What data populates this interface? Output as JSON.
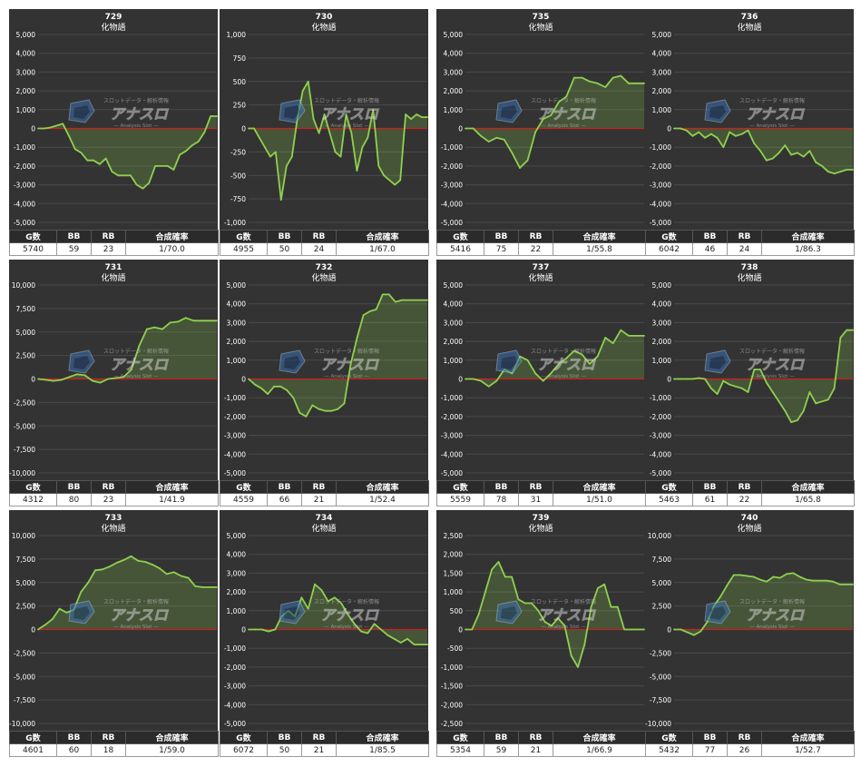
{
  "headers": [
    "G数",
    "BB",
    "RB",
    "合成確率"
  ],
  "watermark": {
    "line1": "スロットデータ・解析情報",
    "line2": "アナスロ",
    "line3": "— Analysis Slot —"
  },
  "colors": {
    "line": "#8fd14f",
    "fill": "#8fd14f",
    "zero": "#cc1f1f",
    "bg": "#333333",
    "grid": "#4a4a4a"
  },
  "panels": [
    {
      "title": "729",
      "subtitle": "化物語",
      "stats": {
        "g": "5740",
        "bb": "59",
        "rb": "23",
        "rate": "1/70.0"
      }
    },
    {
      "title": "730",
      "subtitle": "化物語",
      "stats": {
        "g": "4955",
        "bb": "50",
        "rb": "24",
        "rate": "1/67.0"
      }
    },
    {
      "title": "735",
      "subtitle": "化物語",
      "stats": {
        "g": "5416",
        "bb": "75",
        "rb": "22",
        "rate": "1/55.8"
      }
    },
    {
      "title": "736",
      "subtitle": "化物語",
      "stats": {
        "g": "6042",
        "bb": "46",
        "rb": "24",
        "rate": "1/86.3"
      }
    },
    {
      "title": "731",
      "subtitle": "化物語",
      "stats": {
        "g": "4312",
        "bb": "80",
        "rb": "23",
        "rate": "1/41.9"
      }
    },
    {
      "title": "732",
      "subtitle": "化物語",
      "stats": {
        "g": "4559",
        "bb": "66",
        "rb": "21",
        "rate": "1/52.4"
      }
    },
    {
      "title": "737",
      "subtitle": "化物語",
      "stats": {
        "g": "5559",
        "bb": "78",
        "rb": "31",
        "rate": "1/51.0"
      }
    },
    {
      "title": "738",
      "subtitle": "化物語",
      "stats": {
        "g": "5463",
        "bb": "61",
        "rb": "22",
        "rate": "1/65.8"
      }
    },
    {
      "title": "733",
      "subtitle": "化物語",
      "stats": {
        "g": "4601",
        "bb": "60",
        "rb": "18",
        "rate": "1/59.0"
      }
    },
    {
      "title": "734",
      "subtitle": "化物語",
      "stats": {
        "g": "6072",
        "bb": "50",
        "rb": "21",
        "rate": "1/85.5"
      }
    },
    {
      "title": "739",
      "subtitle": "化物語",
      "stats": {
        "g": "5354",
        "bb": "59",
        "rb": "21",
        "rate": "1/66.9"
      }
    },
    {
      "title": "740",
      "subtitle": "化物語",
      "stats": {
        "g": "5432",
        "bb": "77",
        "rb": "26",
        "rate": "1/52.7"
      }
    }
  ],
  "chart_data": [
    {
      "type": "area",
      "title": "729",
      "subtitle": "化物語",
      "ylim": [
        -5000,
        5000
      ],
      "yticks": [
        "5,000",
        "4,000",
        "3,000",
        "2,000",
        "1,000",
        "0",
        "-1,000",
        "-2,000",
        "-3,000",
        "-4,000",
        "-5,000"
      ],
      "values": [
        0,
        0,
        50,
        150,
        250,
        -400,
        -1100,
        -1300,
        -1700,
        -1700,
        -1900,
        -1600,
        -2300,
        -2500,
        -2500,
        -2500,
        -3000,
        -3200,
        -2900,
        -2000,
        -2000,
        -2000,
        -2200,
        -1400,
        -1200,
        -900,
        -700,
        -200,
        650,
        650
      ]
    },
    {
      "type": "area",
      "title": "730",
      "subtitle": "化物語",
      "ylim": [
        -1000,
        1000
      ],
      "yticks": [
        "1,000",
        "750",
        "500",
        "250",
        "0",
        "-250",
        "-500",
        "-750",
        "-1,000"
      ],
      "values": [
        0,
        0,
        -100,
        -200,
        -300,
        -250,
        -760,
        -400,
        -300,
        100,
        400,
        500,
        100,
        -50,
        150,
        -50,
        -250,
        -300,
        150,
        -50,
        -450,
        -200,
        -100,
        200,
        -400,
        -500,
        -550,
        -600,
        -550,
        150,
        100,
        150,
        120,
        120
      ]
    },
    {
      "type": "area",
      "title": "735",
      "subtitle": "化物語",
      "ylim": [
        -5000,
        5000
      ],
      "yticks": [
        "5,000",
        "4,000",
        "3,000",
        "2,000",
        "1,000",
        "0",
        "-1,000",
        "-2,000",
        "-3,000",
        "-4,000",
        "-5,000"
      ],
      "values": [
        0,
        0,
        -400,
        -700,
        -500,
        -600,
        -1300,
        -2100,
        -1700,
        -200,
        500,
        700,
        1400,
        1700,
        2700,
        2700,
        2500,
        2400,
        2200,
        2700,
        2800,
        2400,
        2400,
        2400
      ]
    },
    {
      "type": "area",
      "title": "736",
      "subtitle": "化物語",
      "ylim": [
        -5000,
        5000
      ],
      "yticks": [
        "5,000",
        "4,000",
        "3,000",
        "2,000",
        "1,000",
        "0",
        "-1,000",
        "-2,000",
        "-3,000",
        "-4,000",
        "-5,000"
      ],
      "values": [
        0,
        0,
        -100,
        -400,
        -200,
        -500,
        -300,
        -500,
        -1000,
        -200,
        -400,
        -300,
        -100,
        -800,
        -1200,
        -1700,
        -1600,
        -1300,
        -900,
        -1400,
        -1300,
        -1500,
        -1200,
        -1800,
        -2000,
        -2300,
        -2400,
        -2300,
        -2200,
        -2200
      ]
    },
    {
      "type": "area",
      "title": "731",
      "subtitle": "化物語",
      "ylim": [
        -10000,
        10000
      ],
      "yticks": [
        "10,000",
        "7,500",
        "5,000",
        "2,500",
        "0",
        "-2,500",
        "-5,000",
        "-7,500",
        "-10,000"
      ],
      "values": [
        0,
        -100,
        -200,
        -100,
        200,
        500,
        400,
        -200,
        -400,
        0,
        100,
        200,
        1000,
        3500,
        5300,
        5500,
        5300,
        6000,
        6100,
        6500,
        6200,
        6200,
        6200,
        6200
      ]
    },
    {
      "type": "area",
      "title": "732",
      "subtitle": "化物語",
      "ylim": [
        -5000,
        5000
      ],
      "yticks": [
        "5,000",
        "4,000",
        "3,000",
        "2,000",
        "1,000",
        "0",
        "-1,000",
        "-2,000",
        "-3,000",
        "-4,000",
        "-5,000"
      ],
      "values": [
        0,
        -300,
        -500,
        -800,
        -400,
        -400,
        -600,
        -1000,
        -1800,
        -2000,
        -1400,
        -1600,
        -1700,
        -1700,
        -1600,
        -1300,
        800,
        2200,
        3400,
        3600,
        3700,
        4500,
        4500,
        4100,
        4200,
        4200,
        4200,
        4200,
        4200
      ]
    },
    {
      "type": "area",
      "title": "737",
      "subtitle": "化物語",
      "ylim": [
        -5000,
        5000
      ],
      "yticks": [
        "5,000",
        "4,000",
        "3,000",
        "2,000",
        "1,000",
        "0",
        "-1,000",
        "-2,000",
        "-3,000",
        "-4,000",
        "-5,000"
      ],
      "values": [
        0,
        0,
        -100,
        -400,
        -100,
        500,
        300,
        1200,
        1000,
        300,
        -100,
        300,
        800,
        1100,
        1500,
        1300,
        800,
        1200,
        2200,
        1900,
        2600,
        2300,
        2300,
        2300
      ]
    },
    {
      "type": "area",
      "title": "738",
      "subtitle": "化物語",
      "ylim": [
        -5000,
        5000
      ],
      "yticks": [
        "5,000",
        "4,000",
        "3,000",
        "2,000",
        "1,000",
        "0",
        "-1,000",
        "-2,000",
        "-3,000",
        "-4,000",
        "-5,000"
      ],
      "values": [
        0,
        0,
        0,
        0,
        50,
        0,
        -500,
        -800,
        -100,
        -300,
        -400,
        -500,
        -700,
        500,
        500,
        -200,
        -700,
        -1200,
        -1700,
        -2300,
        -2200,
        -1700,
        -700,
        -1300,
        -1200,
        -1100,
        -500,
        2200,
        2600,
        2600
      ]
    },
    {
      "type": "area",
      "title": "733",
      "subtitle": "化物語",
      "ylim": [
        -10000,
        10000
      ],
      "yticks": [
        "10,000",
        "7,500",
        "5,000",
        "2,500",
        "0",
        "-2,500",
        "-5,000",
        "-7,500",
        "-10,000"
      ],
      "values": [
        0,
        500,
        1100,
        2200,
        1800,
        2100,
        4000,
        5000,
        6300,
        6400,
        6700,
        7100,
        7400,
        7800,
        7300,
        7200,
        6900,
        6500,
        5900,
        6100,
        5700,
        5500,
        4600,
        4500,
        4500,
        4500
      ]
    },
    {
      "type": "area",
      "title": "734",
      "subtitle": "化物語",
      "ylim": [
        -5000,
        5000
      ],
      "yticks": [
        "5,000",
        "4,000",
        "3,000",
        "2,000",
        "1,000",
        "0",
        "-1,000",
        "-2,000",
        "-3,000",
        "-4,000",
        "-5,000"
      ],
      "values": [
        0,
        0,
        0,
        -100,
        0,
        700,
        1000,
        700,
        1700,
        1100,
        2400,
        2100,
        1500,
        1700,
        1400,
        800,
        300,
        -100,
        -200,
        300,
        0,
        -300,
        -500,
        -700,
        -500,
        -800,
        -800,
        -800
      ]
    },
    {
      "type": "area",
      "title": "739",
      "subtitle": "化物語",
      "ylim": [
        -2500,
        2500
      ],
      "yticks": [
        "2,500",
        "2,000",
        "1,500",
        "1,000",
        "500",
        "0",
        "-500",
        "-1,000",
        "-1,500",
        "-2,000",
        "-2,500"
      ],
      "values": [
        0,
        0,
        400,
        1000,
        1600,
        1800,
        1400,
        1400,
        800,
        700,
        700,
        500,
        200,
        100,
        300,
        100,
        -700,
        -1000,
        -400,
        600,
        1100,
        1200,
        600,
        600,
        0,
        0,
        0,
        0
      ]
    },
    {
      "type": "area",
      "title": "740",
      "subtitle": "化物語",
      "ylim": [
        -10000,
        10000
      ],
      "yticks": [
        "10,000",
        "7,500",
        "5,000",
        "2,500",
        "0",
        "-2,500",
        "-5,000",
        "-7,500",
        "-10,000"
      ],
      "values": [
        0,
        0,
        -300,
        -600,
        -200,
        800,
        2500,
        3500,
        4700,
        5800,
        5800,
        5700,
        5600,
        5300,
        5100,
        5600,
        5500,
        5900,
        6000,
        5600,
        5300,
        5200,
        5200,
        5200,
        5100,
        4800,
        4800,
        4800
      ]
    }
  ]
}
